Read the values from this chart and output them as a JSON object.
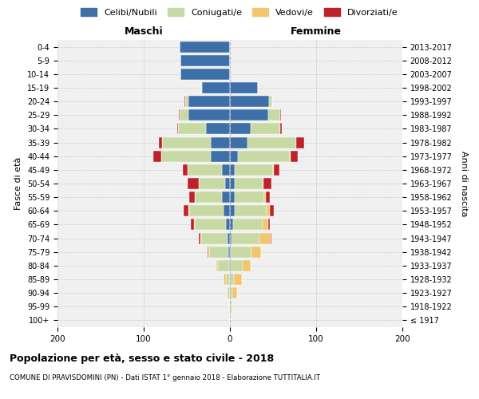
{
  "age_groups": [
    "100+",
    "95-99",
    "90-94",
    "85-89",
    "80-84",
    "75-79",
    "70-74",
    "65-69",
    "60-64",
    "55-59",
    "50-54",
    "45-49",
    "40-44",
    "35-39",
    "30-34",
    "25-29",
    "20-24",
    "15-19",
    "10-14",
    "5-9",
    "0-4"
  ],
  "birth_years": [
    "≤ 1917",
    "1918-1922",
    "1923-1927",
    "1928-1932",
    "1933-1937",
    "1938-1942",
    "1943-1947",
    "1948-1952",
    "1953-1957",
    "1958-1962",
    "1963-1967",
    "1968-1972",
    "1973-1977",
    "1978-1982",
    "1983-1987",
    "1988-1992",
    "1993-1997",
    "1998-2002",
    "2003-2007",
    "2008-2012",
    "2013-2017"
  ],
  "males": {
    "celibi": [
      0,
      0,
      0,
      0,
      1,
      2,
      3,
      5,
      7,
      9,
      6,
      9,
      22,
      22,
      28,
      48,
      48,
      32,
      57,
      57,
      58
    ],
    "coniugati": [
      0,
      1,
      3,
      5,
      13,
      22,
      30,
      36,
      40,
      32,
      30,
      40,
      58,
      57,
      32,
      10,
      4,
      1,
      0,
      0,
      0
    ],
    "vedovi": [
      0,
      0,
      1,
      2,
      2,
      1,
      1,
      1,
      1,
      0,
      0,
      0,
      0,
      0,
      0,
      0,
      0,
      0,
      0,
      0,
      0
    ],
    "divorziati": [
      0,
      0,
      0,
      0,
      0,
      1,
      2,
      3,
      6,
      6,
      13,
      6,
      9,
      3,
      1,
      1,
      1,
      0,
      0,
      0,
      0
    ]
  },
  "females": {
    "nubili": [
      0,
      0,
      0,
      0,
      0,
      1,
      2,
      4,
      6,
      6,
      6,
      6,
      9,
      20,
      24,
      44,
      45,
      32,
      0,
      0,
      0
    ],
    "coniugate": [
      0,
      2,
      3,
      5,
      15,
      24,
      32,
      34,
      37,
      34,
      32,
      44,
      60,
      57,
      34,
      14,
      4,
      0,
      0,
      0,
      0
    ],
    "vedove": [
      0,
      1,
      5,
      9,
      9,
      11,
      13,
      6,
      3,
      2,
      1,
      1,
      1,
      0,
      0,
      0,
      0,
      0,
      0,
      0,
      0
    ],
    "divorziate": [
      0,
      0,
      0,
      0,
      0,
      0,
      1,
      2,
      5,
      4,
      9,
      6,
      9,
      9,
      2,
      1,
      0,
      0,
      0,
      0,
      0
    ]
  },
  "color_celibi": "#3d6fa8",
  "color_coniugati": "#c8daa4",
  "color_vedovi": "#f2c56e",
  "color_divorziati": "#c0202a",
  "bg_color": "#f0f0f0",
  "title": "Popolazione per età, sesso e stato civile - 2018",
  "subtitle": "COMUNE DI PRAVISDOMINI (PN) - Dati ISTAT 1° gennaio 2018 - Elaborazione TUTTITALIA.IT",
  "xlabel_maschi": "Maschi",
  "xlabel_femmine": "Femmine",
  "ylabel_left": "Fasce di età",
  "ylabel_right": "Anni di nascita",
  "xlim": 200
}
